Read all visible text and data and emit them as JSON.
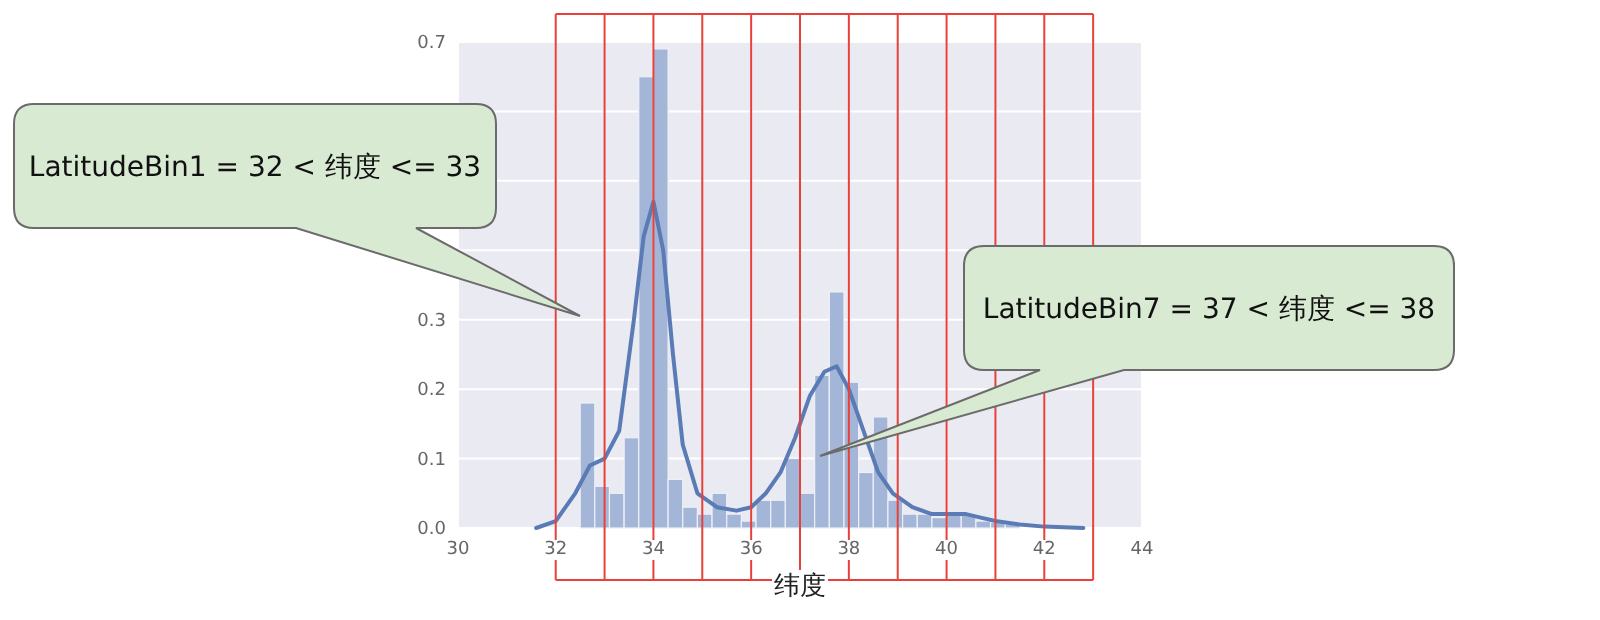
{
  "chart_data": {
    "type": "histogram",
    "xlabel": "纬度",
    "xlim": [
      30,
      44
    ],
    "ylim": [
      0,
      0.7
    ],
    "xticks": [
      30,
      32,
      34,
      36,
      38,
      40,
      42,
      44
    ],
    "yticks": [
      {
        "value": 0,
        "label": "0.0"
      },
      {
        "value": 0.1,
        "label": "0.1"
      },
      {
        "value": 0.2,
        "label": "0.2"
      },
      {
        "value": 0.3,
        "label": "0.3"
      },
      {
        "value": 0.4,
        "label": null
      },
      {
        "value": 0.5,
        "label": null
      },
      {
        "value": 0.6,
        "label": null
      },
      {
        "value": 0.7,
        "label": "0.7"
      }
    ],
    "grid": true,
    "series": [
      {
        "type": "histogram",
        "color": "#a4b6d7",
        "bins": [
          32.5,
          32.8,
          33.1,
          33.4,
          33.7,
          34.0,
          34.3,
          34.6,
          34.9,
          35.2,
          35.5,
          35.8,
          36.1,
          36.4,
          36.7,
          37.0,
          37.3,
          37.6,
          37.9,
          38.2,
          38.5,
          38.8,
          39.1,
          39.4,
          39.7,
          40.0,
          40.3,
          40.6,
          40.9,
          41.2,
          41.5
        ],
        "values": [
          0.18,
          0.06,
          0.05,
          0.13,
          0.65,
          0.69,
          0.07,
          0.03,
          0.02,
          0.05,
          0.02,
          0.01,
          0.04,
          0.04,
          0.1,
          0.05,
          0.22,
          0.34,
          0.21,
          0.08,
          0.16,
          0.04,
          0.02,
          0.02,
          0.015,
          0.02,
          0.02,
          0.01,
          0.008,
          0.006
        ]
      },
      {
        "type": "line",
        "color": "#5a7bb5",
        "x": [
          31.6,
          32.0,
          32.4,
          32.7,
          33.0,
          33.3,
          33.6,
          33.8,
          34.0,
          34.2,
          34.4,
          34.6,
          34.9,
          35.3,
          35.7,
          36.0,
          36.3,
          36.6,
          36.9,
          37.2,
          37.5,
          37.75,
          38.0,
          38.3,
          38.6,
          38.9,
          39.3,
          39.7,
          40.0,
          40.4,
          40.7,
          41.0,
          41.5,
          42.0,
          42.8
        ],
        "values": [
          0,
          0.01,
          0.05,
          0.09,
          0.1,
          0.14,
          0.3,
          0.42,
          0.47,
          0.4,
          0.25,
          0.12,
          0.05,
          0.03,
          0.025,
          0.03,
          0.05,
          0.08,
          0.13,
          0.19,
          0.225,
          0.233,
          0.2,
          0.14,
          0.08,
          0.05,
          0.03,
          0.02,
          0.02,
          0.02,
          0.015,
          0.01,
          0.005,
          0.002,
          0
        ]
      }
    ],
    "ref_lines": [
      {
        "axis": "x",
        "value": 32,
        "color": "#e8413c"
      },
      {
        "axis": "x",
        "value": 33,
        "color": "#e8413c"
      },
      {
        "axis": "x",
        "value": 34,
        "color": "#e8413c"
      },
      {
        "axis": "x",
        "value": 35,
        "color": "#e8413c"
      },
      {
        "axis": "x",
        "value": 36,
        "color": "#e8413c"
      },
      {
        "axis": "x",
        "value": 37,
        "color": "#e8413c"
      },
      {
        "axis": "x",
        "value": 38,
        "color": "#e8413c"
      },
      {
        "axis": "x",
        "value": 39,
        "color": "#e8413c"
      },
      {
        "axis": "x",
        "value": 40,
        "color": "#e8413c"
      },
      {
        "axis": "x",
        "value": 41,
        "color": "#e8413c"
      },
      {
        "axis": "x",
        "value": 42,
        "color": "#e8413c"
      },
      {
        "axis": "x",
        "value": 43,
        "color": "#e8413c"
      }
    ],
    "annotations": [
      "LatitudeBin1 = 32 < 纬度 <= 33",
      "LatitudeBin7 = 37 < 纬度 <= 38"
    ]
  }
}
